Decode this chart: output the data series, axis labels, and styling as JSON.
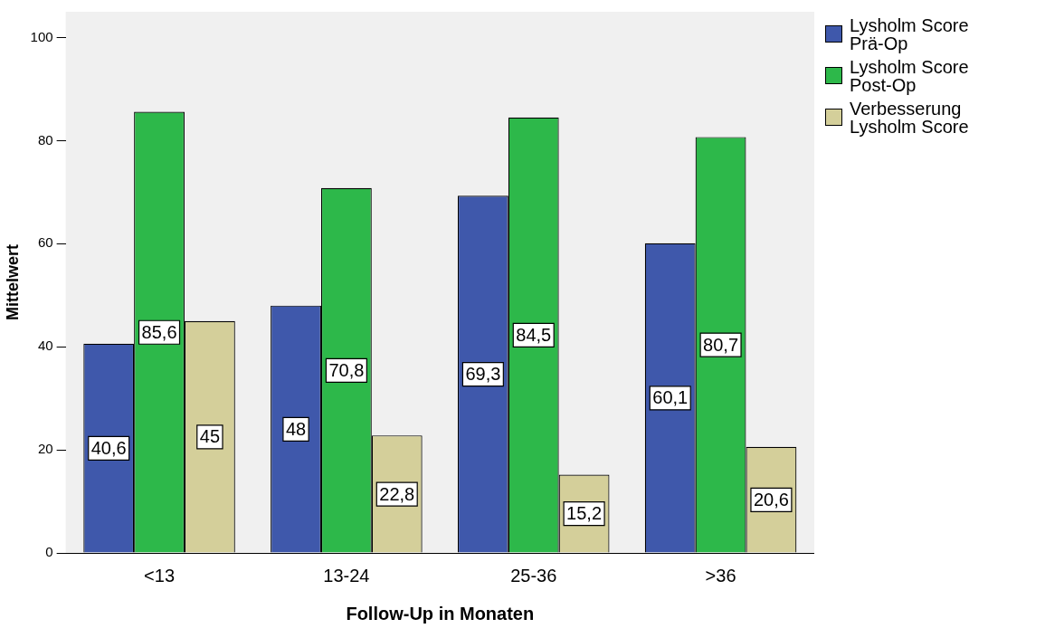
{
  "chart_data": {
    "type": "bar",
    "xlabel": "Follow-Up in Monaten",
    "ylabel": "Mittelwert",
    "categories": [
      "<13",
      "13-24",
      "25-36",
      ">36"
    ],
    "series": [
      {
        "name": "Lysholm Score Prä-Op",
        "color": "#3f58ab",
        "values": [
          40.6,
          48,
          69.3,
          60.1
        ],
        "value_labels": [
          "40,6",
          "48",
          "69,3",
          "60,1"
        ]
      },
      {
        "name": "Lysholm Score Post-Op",
        "color": "#2db84a",
        "values": [
          85.6,
          70.8,
          84.5,
          80.7
        ],
        "value_labels": [
          "85,6",
          "70,8",
          "84,5",
          "80,7"
        ]
      },
      {
        "name": "Verbesserung Lysholm Score",
        "color": "#d4cf9a",
        "values": [
          45,
          22.8,
          15.2,
          20.6
        ],
        "value_labels": [
          "45",
          "22,8",
          "15,2",
          "20,6"
        ]
      }
    ],
    "ylim": [
      0,
      105
    ],
    "yticks": [
      0,
      20,
      40,
      60,
      80,
      100
    ],
    "grid": false,
    "legend": "top right"
  }
}
